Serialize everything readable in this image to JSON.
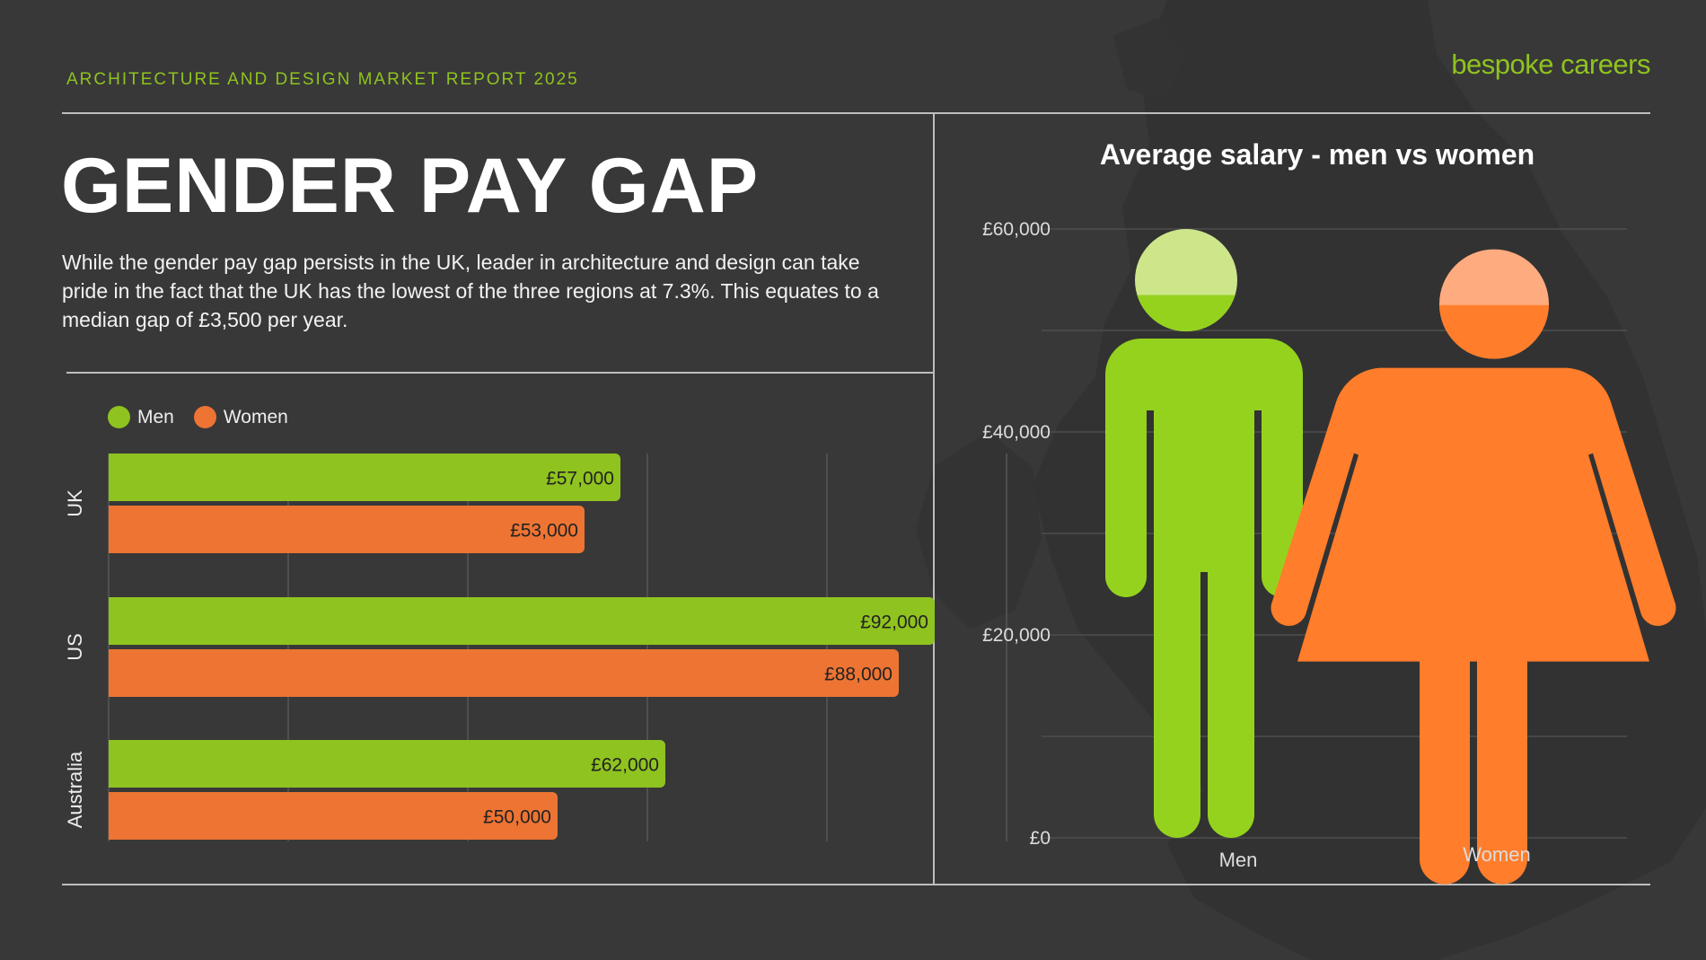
{
  "header": {
    "report_label": "ARCHITECTURE AND DESIGN MARKET REPORT 2025",
    "brand": "bespoke careers"
  },
  "page": {
    "title": "GENDER PAY GAP",
    "intro": "While the gender pay gap persists in the UK, leader in architecture and design can take pride in the fact that the UK has the lowest of the three regions at 7.3%. This equates to a median gap of £3,500 per year."
  },
  "colors": {
    "background": "#383838",
    "accent": "#8fc31f",
    "men": "#8fc31f",
    "women": "#ed7433",
    "men_figure": "#95d21e",
    "women_figure": "#ff7d2b"
  },
  "legend": [
    {
      "label": "Men",
      "color": "#8fc31f"
    },
    {
      "label": "Women",
      "color": "#ed7433"
    }
  ],
  "chart_data": [
    {
      "type": "bar",
      "orientation": "horizontal",
      "title": "",
      "xlabel": "",
      "ylabel": "",
      "categories": [
        "UK",
        "US",
        "Australia"
      ],
      "series": [
        {
          "name": "Men",
          "values": [
            57000,
            92000,
            62000
          ],
          "labels": [
            "£57,000",
            "£92,000",
            "£62,000"
          ]
        },
        {
          "name": "Women",
          "values": [
            53000,
            88000,
            50000
          ],
          "labels": [
            "£53,000",
            "£88,000",
            "£50,000"
          ]
        }
      ],
      "xlim": [
        0,
        100000
      ],
      "grid": true,
      "legend": "top-left"
    },
    {
      "type": "bar",
      "style": "pictogram",
      "title": "Average salary - men vs women",
      "xlabel": "",
      "ylabel": "",
      "categories": [
        "Men",
        "Women"
      ],
      "values": [
        60000,
        58000
      ],
      "fill_levels": [
        53500,
        52500
      ],
      "y_ticks": [
        "£0",
        "£20,000",
        "£40,000",
        "£60,000"
      ],
      "y_tick_values": [
        0,
        20000,
        40000,
        60000
      ],
      "ylim": [
        0,
        60000
      ],
      "grid": true
    }
  ]
}
